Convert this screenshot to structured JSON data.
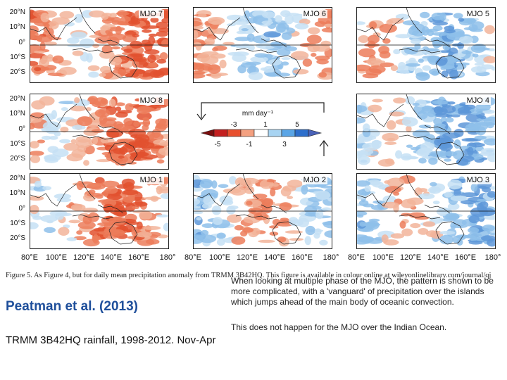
{
  "figure": {
    "panels": [
      {
        "label": "MJO 7"
      },
      {
        "label": "MJO 6"
      },
      {
        "label": "MJO 5"
      },
      {
        "label": "MJO 8"
      },
      {
        "label": "MJO 4"
      },
      {
        "label": "MJO 1"
      },
      {
        "label": "MJO 2"
      },
      {
        "label": "MJO 3"
      }
    ],
    "lat_ticks": [
      "20°N",
      "10°N",
      "0°",
      "10°S",
      "20°S"
    ],
    "lon_ticks": [
      "80°E",
      "100°E",
      "120°E",
      "140°E",
      "160°E",
      "180°"
    ],
    "legend": {
      "unit": "mm day⁻¹",
      "top_ticks": [
        "-3",
        "1",
        "5"
      ],
      "bottom_ticks": [
        "-5",
        "-1",
        "3"
      ]
    },
    "caption": "Figure 5. As Figure 4, but for daily mean precipitation anomaly from TRMM 3B42HQ. This figure is available in colour online at wileyonlinelibrary.com/journal/qj"
  },
  "left": {
    "title": "Peatman et al. (2013)",
    "subtitle": "TRMM 3B42HQ rainfall, 1998-2012. Nov-Apr"
  },
  "right": {
    "para1": "When looking at multiple phase of the MJO, the pattern is shown to be more complicated, with a 'vanguard' of precipitation over the islands which jumps ahead of the main body of oceanic convection.",
    "para2": "This does not happen for the MJO over the Indian Ocean."
  }
}
